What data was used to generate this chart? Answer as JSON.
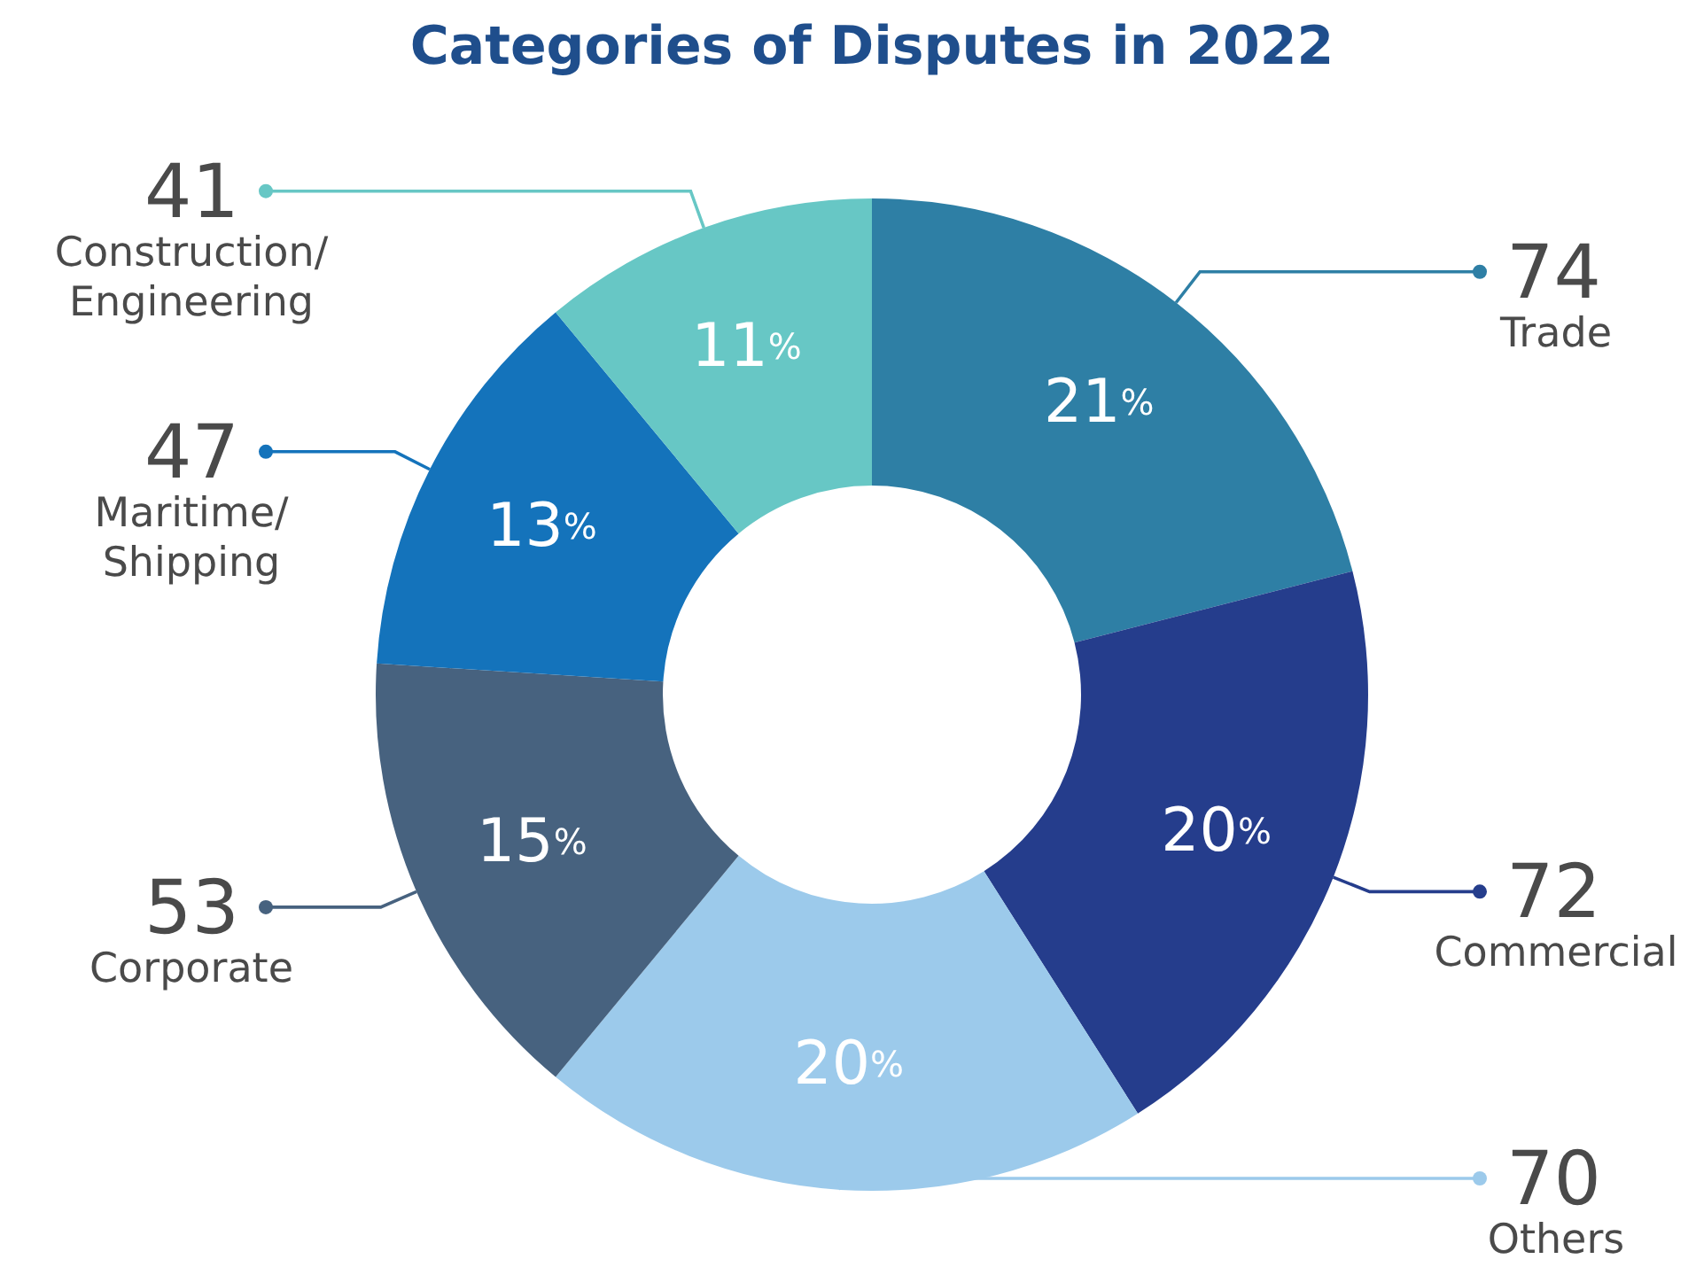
{
  "chart_data": {
    "type": "donut",
    "title": "Categories of Disputes in 2022",
    "categories": [
      "Trade",
      "Commercial",
      "Others",
      "Corporate",
      "Maritime/Shipping",
      "Construction/Engineering"
    ],
    "values": [
      21,
      20,
      20,
      15,
      13,
      11
    ],
    "colors": [
      "#2e7fa5",
      "#253d8c",
      "#9ccaeb",
      "#47627f",
      "#1473bb",
      "#67c7c5"
    ],
    "value_labels": [
      "21%",
      "20%",
      "20%",
      "15%",
      "13%",
      "11%"
    ],
    "annotations": [
      "74",
      "72",
      "70",
      "53",
      "47",
      "41"
    ],
    "legend": "left, right"
  }
}
